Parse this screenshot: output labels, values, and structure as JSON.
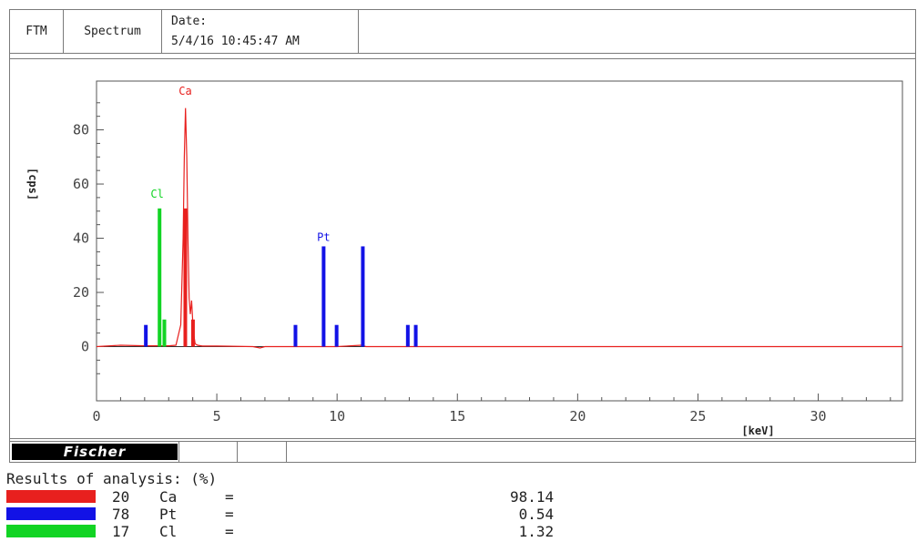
{
  "header": {
    "method": "FTM",
    "mode": "Spectrum",
    "date_label": "Date:",
    "date_value": "5/4/16 10:45:47 AM"
  },
  "footer": {
    "logo_text": "Fischer"
  },
  "results": {
    "title": "Results of analysis: (%)",
    "rows": [
      {
        "z": "20",
        "symbol": "Ca",
        "eq": "=",
        "value": "98.14",
        "color": "#e8201e"
      },
      {
        "z": "78",
        "symbol": "Pt",
        "eq": "=",
        "value": "0.54",
        "color": "#1212e6"
      },
      {
        "z": "17",
        "symbol": "Cl",
        "eq": "=",
        "value": "1.32",
        "color": "#12d424"
      }
    ]
  },
  "chart_data": {
    "type": "line",
    "xlabel": "[keV]",
    "ylabel": "[cps]",
    "xlim": [
      0,
      33.5
    ],
    "ylim": [
      -20,
      98
    ],
    "x_ticks": [
      0,
      5,
      10,
      15,
      20,
      25,
      30
    ],
    "y_ticks": [
      0,
      20,
      40,
      60,
      80
    ],
    "grid": false,
    "colors": {
      "spectrum": "#e8201e",
      "Ca": "#e8201e",
      "Pt": "#1212e6",
      "Cl": "#12d424",
      "axis": "#555555"
    },
    "spectrum": {
      "x": [
        0.0,
        1.0,
        2.0,
        2.5,
        3.0,
        3.3,
        3.5,
        3.6,
        3.65,
        3.7,
        3.75,
        3.8,
        3.85,
        3.9,
        3.95,
        4.0,
        4.05,
        4.1,
        4.2,
        4.4,
        5.0,
        6.5,
        6.8,
        7.0,
        10.0,
        11.0,
        11.2,
        33.5
      ],
      "y": [
        0,
        0.5,
        0.3,
        0.3,
        0.3,
        0.5,
        8,
        40,
        70,
        88,
        70,
        40,
        18,
        12,
        17,
        9,
        4,
        1,
        0.5,
        0.2,
        0.2,
        0,
        -0.5,
        0,
        0,
        0.5,
        0,
        0
      ]
    },
    "lines": [
      {
        "element": "Cl",
        "x": 2.62,
        "height": 51
      },
      {
        "element": "Cl",
        "x": 2.82,
        "height": 10
      },
      {
        "element": "Ca",
        "x": 3.69,
        "height": 51
      },
      {
        "element": "Ca",
        "x": 4.01,
        "height": 10
      },
      {
        "element": "Pt",
        "x": 2.05,
        "height": 8
      },
      {
        "element": "Pt",
        "x": 8.27,
        "height": 8
      },
      {
        "element": "Pt",
        "x": 9.44,
        "height": 37
      },
      {
        "element": "Pt",
        "x": 9.98,
        "height": 8
      },
      {
        "element": "Pt",
        "x": 11.07,
        "height": 37
      },
      {
        "element": "Pt",
        "x": 12.94,
        "height": 8
      },
      {
        "element": "Pt",
        "x": 13.27,
        "height": 8
      }
    ],
    "peak_labels": [
      {
        "text": "Ca",
        "x": 3.69,
        "y": 93,
        "color": "#e8201e"
      },
      {
        "text": "Cl",
        "x": 2.52,
        "y": 55,
        "color": "#12d424"
      },
      {
        "text": "Pt",
        "x": 9.44,
        "y": 39,
        "color": "#1212e6"
      }
    ]
  }
}
